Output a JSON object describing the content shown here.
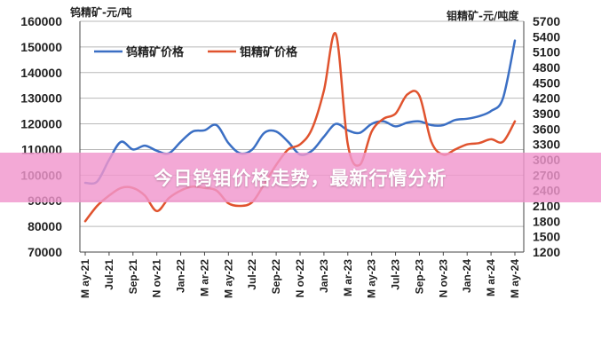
{
  "banner": {
    "text": "今日钨钼价格走势，最新行情分析"
  },
  "colors": {
    "tungsten": "#3b6fc4",
    "molybdenum": "#e0532e",
    "banner": "#f096cd"
  },
  "chart_data": {
    "type": "line",
    "left_unit": "钨精矿-元/吨",
    "right_unit": "钼精矿-元/吨度",
    "left_axis": {
      "min": 70000,
      "max": 160000,
      "ticks": [
        "70000",
        "80000",
        "90000",
        "100000",
        "110000",
        "120000",
        "130000",
        "140000",
        "150000",
        "160000"
      ]
    },
    "right_axis": {
      "min": 1200,
      "max": 5700,
      "ticks": [
        "1200",
        "1500",
        "1800",
        "2100",
        "2400",
        "2700",
        "3000",
        "3300",
        "3600",
        "3900",
        "4200",
        "4500",
        "4800",
        "5100",
        "5400",
        "5700"
      ]
    },
    "x_labels": [
      "May-21",
      "Jul-21",
      "Sep-21",
      "Nov-21",
      "Jan-22",
      "Mar-22",
      "May-22",
      "Jul-22",
      "Sep-22",
      "Nov-22",
      "Jan-23",
      "Mar-23",
      "May-23",
      "Jul-23",
      "Sep-23",
      "Nov-23",
      "Jan-24",
      "Mar-24",
      "May-24"
    ],
    "x_labels_display": [
      "M ay-21",
      "Jul-21",
      "Sep-21",
      "N ov-21",
      "Jan-22",
      "M ar-22",
      "M ay-22",
      "Jul-22",
      "Sep-22",
      "N ov-22",
      "Jan-23",
      "M ar-23",
      "M ay-23",
      "Jul-23",
      "Sep-23",
      "N ov-23",
      "Jan-24",
      "M ar-24",
      "M ay-24"
    ],
    "legend": [
      {
        "name": "钨精矿价格",
        "color": "#3b6fc4"
      },
      {
        "name": "钼精矿价格",
        "color": "#e0532e"
      }
    ],
    "series": [
      {
        "name": "钨精矿价格",
        "axis": "left",
        "color": "#3b6fc4",
        "x": [
          0,
          0.5,
          1,
          1.5,
          2,
          2.5,
          3,
          3.5,
          4,
          4.5,
          5,
          5.5,
          6,
          6.5,
          7,
          7.5,
          8,
          8.5,
          9,
          9.5,
          10,
          10.5,
          11,
          11.5,
          12,
          12.5,
          13,
          13.5,
          14,
          14.5,
          15,
          15.5,
          16,
          16.5,
          17,
          17.5,
          18
        ],
        "values": [
          97000,
          97500,
          106000,
          113000,
          110000,
          111500,
          109500,
          108500,
          113000,
          117000,
          117500,
          119500,
          112500,
          108500,
          110000,
          116500,
          117000,
          113000,
          108000,
          109500,
          115000,
          120000,
          117500,
          116500,
          120000,
          121000,
          119000,
          120500,
          121000,
          119500,
          119500,
          121500,
          122000,
          123000,
          125000,
          130000,
          152500
        ]
      },
      {
        "name": "钼精矿价格",
        "axis": "left",
        "color": "#e0532e",
        "x": [
          0,
          0.5,
          1,
          1.5,
          2,
          2.5,
          3,
          3.5,
          4,
          4.5,
          5,
          5.5,
          6,
          6.5,
          7,
          7.5,
          8,
          8.5,
          9,
          9.5,
          10,
          10.5,
          11,
          11.5,
          12,
          12.5,
          13,
          13.5,
          14,
          14.5,
          15,
          15.5,
          16,
          16.5,
          17,
          17.5,
          18
        ],
        "values": [
          82000,
          88000,
          92000,
          95000,
          95000,
          92000,
          86000,
          91000,
          94000,
          95500,
          95000,
          94000,
          89000,
          88000,
          89500,
          96500,
          104000,
          110000,
          112000,
          118000,
          133000,
          155000,
          112000,
          104000,
          117000,
          122000,
          124000,
          131500,
          131000,
          113000,
          108000,
          110000,
          112000,
          112500,
          114000,
          113000,
          121000
        ]
      }
    ]
  }
}
